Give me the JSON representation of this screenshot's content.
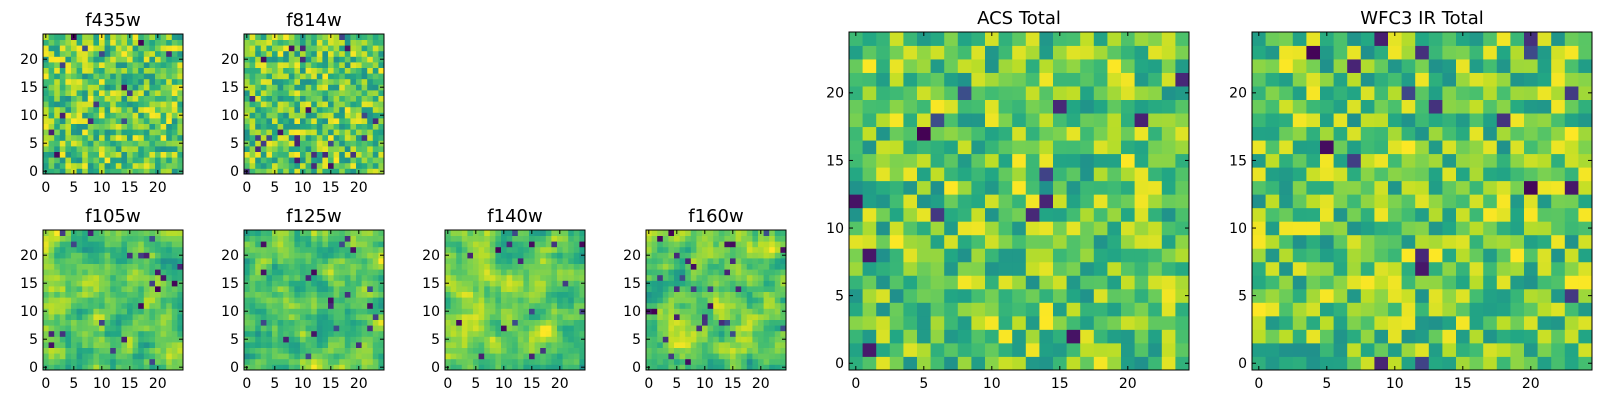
{
  "chart_data": [
    {
      "type": "heatmap",
      "title": "f435w",
      "size": 25,
      "xlim": [
        0,
        24
      ],
      "ylim": [
        0,
        24
      ],
      "xticks": [
        0,
        5,
        10,
        15,
        20
      ],
      "yticks": [
        0,
        5,
        10,
        15,
        20
      ],
      "colormap": "viridis",
      "texture": "pixel",
      "seed": 11,
      "vrange": [
        0.5,
        1.0
      ]
    },
    {
      "type": "heatmap",
      "title": "f814w",
      "size": 25,
      "xlim": [
        0,
        24
      ],
      "ylim": [
        0,
        24
      ],
      "xticks": [
        0,
        5,
        10,
        15,
        20
      ],
      "yticks": [
        0,
        5,
        10,
        15,
        20
      ],
      "colormap": "viridis",
      "texture": "pixel",
      "seed": 23,
      "vrange": [
        0.5,
        1.0
      ]
    },
    {
      "type": "heatmap",
      "title": "f105w",
      "size": 25,
      "xlim": [
        0,
        24
      ],
      "ylim": [
        0,
        24
      ],
      "xticks": [
        0,
        5,
        10,
        15,
        20
      ],
      "yticks": [
        0,
        5,
        10,
        15,
        20
      ],
      "colormap": "viridis",
      "texture": "smooth",
      "seed": 37,
      "vrange": [
        0.5,
        1.0
      ]
    },
    {
      "type": "heatmap",
      "title": "f125w",
      "size": 25,
      "xlim": [
        0,
        24
      ],
      "ylim": [
        0,
        24
      ],
      "xticks": [
        0,
        5,
        10,
        15,
        20
      ],
      "yticks": [
        0,
        5,
        10,
        15,
        20
      ],
      "colormap": "viridis",
      "texture": "smooth",
      "seed": 41,
      "vrange": [
        0.5,
        1.0
      ]
    },
    {
      "type": "heatmap",
      "title": "f140w",
      "size": 25,
      "xlim": [
        0,
        24
      ],
      "ylim": [
        0,
        24
      ],
      "xticks": [
        0,
        5,
        10,
        15,
        20
      ],
      "yticks": [
        0,
        5,
        10,
        15,
        20
      ],
      "colormap": "viridis",
      "texture": "smooth",
      "seed": 53,
      "vrange": [
        0.5,
        1.0
      ]
    },
    {
      "type": "heatmap",
      "title": "f160w",
      "size": 25,
      "xlim": [
        0,
        24
      ],
      "ylim": [
        0,
        24
      ],
      "xticks": [
        0,
        5,
        10,
        15,
        20
      ],
      "yticks": [
        0,
        5,
        10,
        15,
        20
      ],
      "colormap": "viridis",
      "texture": "smooth",
      "seed": 67,
      "vrange": [
        0.5,
        1.0
      ]
    },
    {
      "type": "heatmap",
      "title": "ACS Total",
      "size": 25,
      "xlim": [
        0,
        24
      ],
      "ylim": [
        0,
        24
      ],
      "xticks": [
        0,
        5,
        10,
        15,
        20
      ],
      "yticks": [
        0,
        5,
        10,
        15,
        20
      ],
      "colormap": "viridis",
      "texture": "pixel",
      "seed": 79,
      "vrange": [
        0.5,
        1.0
      ]
    },
    {
      "type": "heatmap",
      "title": "WFC3 IR Total",
      "size": 25,
      "xlim": [
        0,
        24
      ],
      "ylim": [
        0,
        24
      ],
      "xticks": [
        0,
        5,
        10,
        15,
        20
      ],
      "yticks": [
        0,
        5,
        10,
        15,
        20
      ],
      "colormap": "viridis",
      "texture": "pixel",
      "seed": 97,
      "vrange": [
        0.5,
        1.0
      ]
    }
  ]
}
